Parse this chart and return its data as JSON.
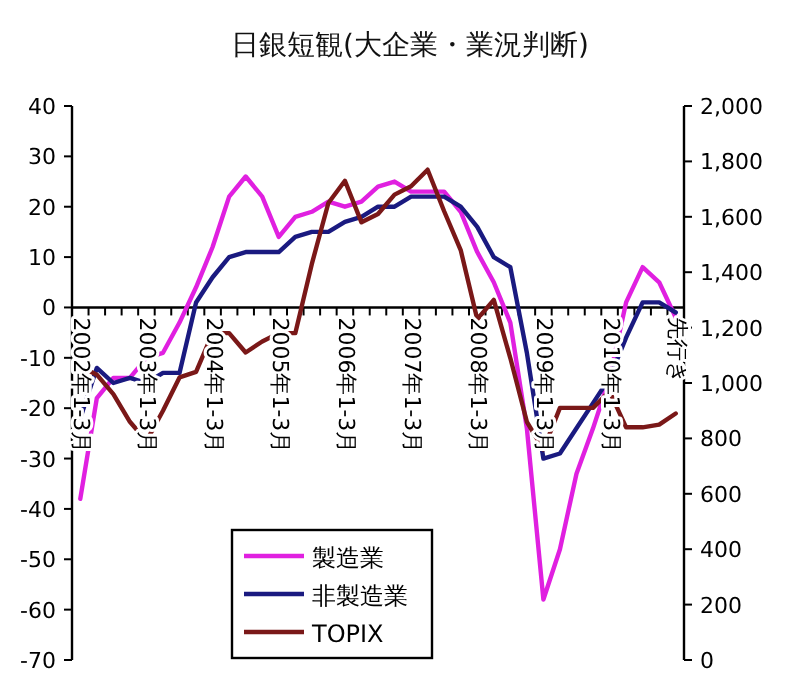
{
  "chart_data": {
    "type": "line",
    "title": "日銀短観(大企業・業況判断)",
    "categories": [
      "2002年1-3月",
      null,
      null,
      null,
      "2003年1-3月",
      null,
      null,
      null,
      "2004年1-3月",
      null,
      null,
      null,
      "2005年1-3月",
      null,
      null,
      null,
      "2006年1-3月",
      null,
      null,
      null,
      "2007年1-3月",
      null,
      null,
      null,
      "2008年1-3月",
      null,
      null,
      null,
      "2009年1-3月",
      null,
      null,
      null,
      "2010年1-3月",
      null,
      null,
      null,
      "先行き"
    ],
    "series": [
      {
        "name": "製造業",
        "color": "#e020e0",
        "values": [
          -38,
          -18,
          -14,
          -14,
          -10,
          -9,
          -3,
          4,
          12,
          22,
          26,
          22,
          14,
          18,
          19,
          21,
          20,
          21,
          24,
          25,
          23,
          23,
          23,
          19,
          11,
          5,
          -3,
          -24,
          -58,
          -48,
          -33,
          -24,
          -14,
          1,
          8,
          5,
          -2
        ]
      },
      {
        "name": "非製造業",
        "color": "#1a1a80",
        "values": [
          -22,
          -12,
          -15,
          -14,
          -15,
          -13,
          -13,
          1,
          6,
          10,
          11,
          11,
          11,
          14,
          15,
          15,
          17,
          18,
          20,
          20,
          22,
          22,
          22,
          20,
          16,
          10,
          8,
          -9,
          -30,
          -29,
          -24,
          -19,
          -14,
          -6,
          1,
          1,
          -1
        ]
      },
      {
        "name": "TOPIX",
        "color": "#7a1818",
        "axis": "y2",
        "values": [
          1060,
          1030,
          960,
          860,
          790,
          900,
          1020,
          1040,
          1180,
          1180,
          1110,
          1150,
          1180,
          1180,
          1430,
          1650,
          1730,
          1580,
          1610,
          1680,
          1710,
          1770,
          1620,
          1480,
          1230,
          1300,
          1090,
          860,
          760,
          910,
          910,
          910,
          970,
          840,
          840,
          850,
          890
        ]
      }
    ],
    "ylim": [
      -70,
      40
    ],
    "yticks": [
      -70,
      -60,
      -50,
      -40,
      -30,
      -20,
      -10,
      0,
      10,
      20,
      30,
      40
    ],
    "y2lim": [
      0,
      2000
    ],
    "y2ticks": [
      0,
      {
        "value": 200,
        "label": "200"
      },
      {
        "value": 400,
        "label": "400"
      },
      {
        "value": 600,
        "label": "600"
      },
      {
        "value": 800,
        "label": "800"
      },
      {
        "value": 1000,
        "label": "1,000"
      },
      {
        "value": 1200,
        "label": "1,200"
      },
      {
        "value": 1400,
        "label": "1,400"
      },
      {
        "value": 1600,
        "label": "1,600"
      },
      {
        "value": 1800,
        "label": "1,800"
      },
      {
        "value": 2000,
        "label": "2,000"
      }
    ],
    "legend": "bottom",
    "grid": false,
    "marker": "none",
    "line_style": "solid"
  }
}
